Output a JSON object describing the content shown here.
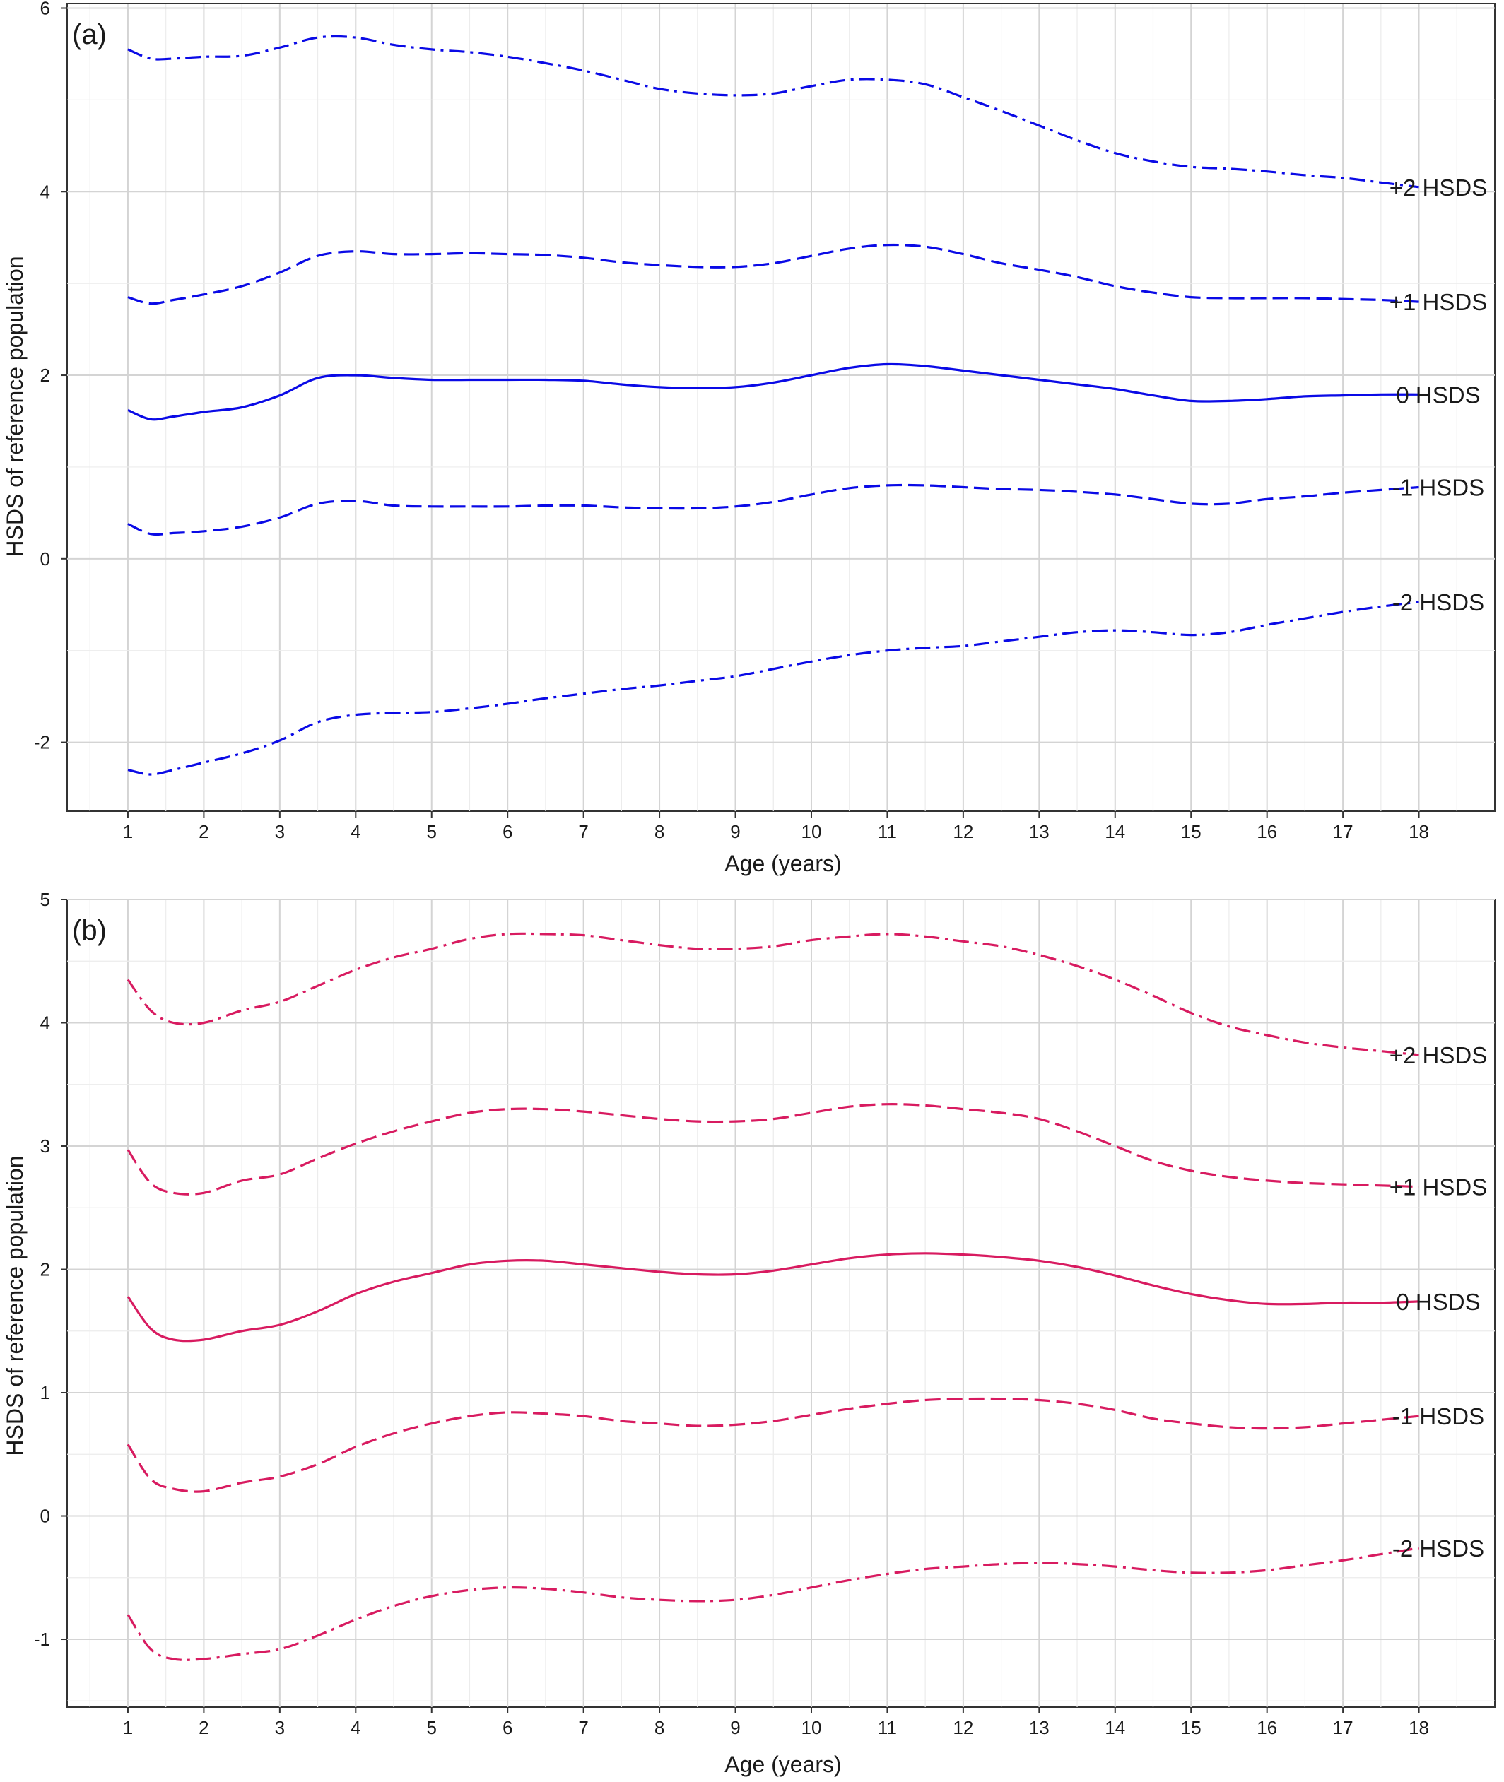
{
  "chart_data": [
    {
      "type": "line",
      "panel_label": "(a)",
      "xlabel": "Age (years)",
      "ylabel": "HSDS of reference population",
      "xlim": [
        0.2,
        19.0
      ],
      "ylim": [
        -2.75,
        6.05
      ],
      "x_ticks": [
        "1",
        "2",
        "3",
        "4",
        "5",
        "6",
        "7",
        "8",
        "9",
        "10",
        "11",
        "12",
        "13",
        "14",
        "15",
        "16",
        "17",
        "18"
      ],
      "y_ticks": [
        "-2",
        "0",
        "2",
        "4",
        "6"
      ],
      "grid": true,
      "color": "#0a0ae6",
      "series": [
        {
          "name": "+2 HSDS",
          "dash": "dotdash",
          "x": [
            1,
            1.3,
            1.6,
            2,
            2.5,
            3,
            3.5,
            4,
            4.5,
            5,
            5.5,
            6,
            6.5,
            7,
            7.5,
            8,
            8.5,
            9,
            9.5,
            10,
            10.5,
            11,
            11.5,
            12,
            12.5,
            13,
            13.5,
            14,
            14.5,
            15,
            15.5,
            16,
            16.5,
            17,
            17.5,
            18
          ],
          "y": [
            5.55,
            5.45,
            5.45,
            5.47,
            5.48,
            5.57,
            5.68,
            5.68,
            5.6,
            5.55,
            5.52,
            5.47,
            5.4,
            5.32,
            5.22,
            5.12,
            5.07,
            5.05,
            5.07,
            5.15,
            5.22,
            5.22,
            5.17,
            5.03,
            4.88,
            4.72,
            4.56,
            4.42,
            4.33,
            4.27,
            4.25,
            4.22,
            4.18,
            4.15,
            4.1,
            4.05
          ]
        },
        {
          "name": "+1 HSDS",
          "dash": "dash",
          "x": [
            1,
            1.3,
            1.6,
            2,
            2.5,
            3,
            3.5,
            4,
            4.5,
            5,
            5.5,
            6,
            6.5,
            7,
            7.5,
            8,
            8.5,
            9,
            9.5,
            10,
            10.5,
            11,
            11.5,
            12,
            12.5,
            13,
            13.5,
            14,
            14.5,
            15,
            15.5,
            16,
            16.5,
            17,
            17.5,
            18
          ],
          "y": [
            2.85,
            2.78,
            2.82,
            2.88,
            2.97,
            3.12,
            3.3,
            3.35,
            3.32,
            3.32,
            3.33,
            3.32,
            3.31,
            3.28,
            3.23,
            3.2,
            3.18,
            3.18,
            3.22,
            3.3,
            3.38,
            3.42,
            3.4,
            3.32,
            3.22,
            3.15,
            3.07,
            2.97,
            2.9,
            2.85,
            2.84,
            2.84,
            2.84,
            2.83,
            2.82,
            2.8
          ]
        },
        {
          "name": "0 HSDS",
          "dash": "solid",
          "x": [
            1,
            1.3,
            1.6,
            2,
            2.5,
            3,
            3.5,
            4,
            4.5,
            5,
            5.5,
            6,
            6.5,
            7,
            7.5,
            8,
            8.5,
            9,
            9.5,
            10,
            10.5,
            11,
            11.5,
            12,
            12.5,
            13,
            13.5,
            14,
            14.5,
            15,
            15.5,
            16,
            16.5,
            17,
            17.5,
            18
          ],
          "y": [
            1.62,
            1.52,
            1.55,
            1.6,
            1.65,
            1.78,
            1.97,
            2.0,
            1.97,
            1.95,
            1.95,
            1.95,
            1.95,
            1.94,
            1.9,
            1.87,
            1.86,
            1.87,
            1.92,
            2.0,
            2.08,
            2.12,
            2.1,
            2.05,
            2.0,
            1.95,
            1.9,
            1.85,
            1.78,
            1.72,
            1.72,
            1.74,
            1.77,
            1.78,
            1.79,
            1.79
          ]
        },
        {
          "name": "-1 HSDS",
          "dash": "dash",
          "x": [
            1,
            1.3,
            1.6,
            2,
            2.5,
            3,
            3.5,
            4,
            4.5,
            5,
            5.5,
            6,
            6.5,
            7,
            7.5,
            8,
            8.5,
            9,
            9.5,
            10,
            10.5,
            11,
            11.5,
            12,
            12.5,
            13,
            13.5,
            14,
            14.5,
            15,
            15.5,
            16,
            16.5,
            17,
            17.5,
            18
          ],
          "y": [
            0.38,
            0.27,
            0.28,
            0.3,
            0.35,
            0.45,
            0.6,
            0.63,
            0.58,
            0.57,
            0.57,
            0.57,
            0.58,
            0.58,
            0.56,
            0.55,
            0.55,
            0.57,
            0.62,
            0.7,
            0.77,
            0.8,
            0.8,
            0.78,
            0.76,
            0.75,
            0.73,
            0.7,
            0.65,
            0.6,
            0.6,
            0.65,
            0.68,
            0.72,
            0.75,
            0.78
          ]
        },
        {
          "name": "-2 HSDS",
          "dash": "dotdash",
          "x": [
            1,
            1.3,
            1.6,
            2,
            2.5,
            3,
            3.5,
            4,
            4.5,
            5,
            5.5,
            6,
            6.5,
            7,
            7.5,
            8,
            8.5,
            9,
            9.5,
            10,
            10.5,
            11,
            11.5,
            12,
            12.5,
            13,
            13.5,
            14,
            14.5,
            15,
            15.5,
            16,
            16.5,
            17,
            17.5,
            18
          ],
          "y": [
            -2.3,
            -2.35,
            -2.3,
            -2.22,
            -2.12,
            -1.98,
            -1.78,
            -1.7,
            -1.68,
            -1.67,
            -1.63,
            -1.58,
            -1.52,
            -1.47,
            -1.42,
            -1.38,
            -1.33,
            -1.28,
            -1.2,
            -1.12,
            -1.05,
            -1.0,
            -0.97,
            -0.95,
            -0.9,
            -0.85,
            -0.8,
            -0.78,
            -0.8,
            -0.83,
            -0.8,
            -0.72,
            -0.65,
            -0.58,
            -0.52,
            -0.47
          ]
        }
      ]
    },
    {
      "type": "line",
      "panel_label": "(b)",
      "xlabel": "Age (years)",
      "ylabel": "HSDS of reference population",
      "xlim": [
        0.2,
        19.0
      ],
      "ylim": [
        -1.55,
        5.0
      ],
      "x_ticks": [
        "1",
        "2",
        "3",
        "4",
        "5",
        "6",
        "7",
        "8",
        "9",
        "10",
        "11",
        "12",
        "13",
        "14",
        "15",
        "16",
        "17",
        "18"
      ],
      "y_ticks": [
        "-1",
        "0",
        "1",
        "2",
        "3",
        "4",
        "5"
      ],
      "grid": true,
      "color": "#d81b60",
      "series": [
        {
          "name": "+2 HSDS",
          "dash": "dotdash",
          "x": [
            1,
            1.3,
            1.6,
            2,
            2.5,
            3,
            3.5,
            4,
            4.5,
            5,
            5.5,
            6,
            6.5,
            7,
            7.5,
            8,
            8.5,
            9,
            9.5,
            10,
            10.5,
            11,
            11.5,
            12,
            12.5,
            13,
            13.5,
            14,
            14.5,
            15,
            15.5,
            16,
            16.5,
            17,
            17.5,
            18
          ],
          "y": [
            4.35,
            4.1,
            4.0,
            4.0,
            4.1,
            4.17,
            4.3,
            4.43,
            4.53,
            4.6,
            4.68,
            4.72,
            4.72,
            4.71,
            4.67,
            4.63,
            4.6,
            4.6,
            4.62,
            4.67,
            4.7,
            4.72,
            4.7,
            4.66,
            4.62,
            4.55,
            4.46,
            4.35,
            4.22,
            4.08,
            3.97,
            3.9,
            3.84,
            3.8,
            3.77,
            3.74
          ]
        },
        {
          "name": "+1 HSDS",
          "dash": "dash",
          "x": [
            1,
            1.3,
            1.6,
            2,
            2.5,
            3,
            3.5,
            4,
            4.5,
            5,
            5.5,
            6,
            6.5,
            7,
            7.5,
            8,
            8.5,
            9,
            9.5,
            10,
            10.5,
            11,
            11.5,
            12,
            12.5,
            13,
            13.5,
            14,
            14.5,
            15,
            15.5,
            16,
            16.5,
            17,
            17.5,
            18
          ],
          "y": [
            2.97,
            2.7,
            2.62,
            2.62,
            2.72,
            2.77,
            2.9,
            3.02,
            3.12,
            3.2,
            3.27,
            3.3,
            3.3,
            3.28,
            3.25,
            3.22,
            3.2,
            3.2,
            3.22,
            3.27,
            3.32,
            3.34,
            3.33,
            3.3,
            3.27,
            3.22,
            3.12,
            3.0,
            2.88,
            2.8,
            2.75,
            2.72,
            2.7,
            2.69,
            2.68,
            2.67
          ]
        },
        {
          "name": "0 HSDS",
          "dash": "solid",
          "x": [
            1,
            1.3,
            1.6,
            2,
            2.5,
            3,
            3.5,
            4,
            4.5,
            5,
            5.5,
            6,
            6.5,
            7,
            7.5,
            8,
            8.5,
            9,
            9.5,
            10,
            10.5,
            11,
            11.5,
            12,
            12.5,
            13,
            13.5,
            14,
            14.5,
            15,
            15.5,
            16,
            16.5,
            17,
            17.5,
            18
          ],
          "y": [
            1.78,
            1.52,
            1.43,
            1.43,
            1.5,
            1.55,
            1.66,
            1.8,
            1.9,
            1.97,
            2.04,
            2.07,
            2.07,
            2.04,
            2.01,
            1.98,
            1.96,
            1.96,
            1.99,
            2.04,
            2.09,
            2.12,
            2.13,
            2.12,
            2.1,
            2.07,
            2.02,
            1.95,
            1.87,
            1.8,
            1.75,
            1.72,
            1.72,
            1.73,
            1.73,
            1.74
          ]
        },
        {
          "name": "-1 HSDS",
          "dash": "dash",
          "x": [
            1,
            1.3,
            1.6,
            2,
            2.5,
            3,
            3.5,
            4,
            4.5,
            5,
            5.5,
            6,
            6.5,
            7,
            7.5,
            8,
            8.5,
            9,
            9.5,
            10,
            10.5,
            11,
            11.5,
            12,
            12.5,
            13,
            13.5,
            14,
            14.5,
            15,
            15.5,
            16,
            16.5,
            17,
            17.5,
            18
          ],
          "y": [
            0.58,
            0.3,
            0.22,
            0.2,
            0.27,
            0.32,
            0.42,
            0.56,
            0.67,
            0.75,
            0.81,
            0.84,
            0.83,
            0.81,
            0.77,
            0.75,
            0.73,
            0.74,
            0.77,
            0.82,
            0.87,
            0.91,
            0.94,
            0.95,
            0.95,
            0.94,
            0.91,
            0.86,
            0.79,
            0.75,
            0.72,
            0.71,
            0.72,
            0.75,
            0.78,
            0.81
          ]
        },
        {
          "name": "-2 HSDS",
          "dash": "dotdash",
          "x": [
            1,
            1.3,
            1.6,
            2,
            2.5,
            3,
            3.5,
            4,
            4.5,
            5,
            5.5,
            6,
            6.5,
            7,
            7.5,
            8,
            8.5,
            9,
            9.5,
            10,
            10.5,
            11,
            11.5,
            12,
            12.5,
            13,
            13.5,
            14,
            14.5,
            15,
            15.5,
            16,
            16.5,
            17,
            17.5,
            18
          ],
          "y": [
            -0.8,
            -1.08,
            -1.16,
            -1.16,
            -1.12,
            -1.08,
            -0.97,
            -0.84,
            -0.73,
            -0.65,
            -0.6,
            -0.58,
            -0.59,
            -0.62,
            -0.66,
            -0.68,
            -0.69,
            -0.68,
            -0.64,
            -0.58,
            -0.52,
            -0.47,
            -0.43,
            -0.41,
            -0.39,
            -0.38,
            -0.39,
            -0.41,
            -0.44,
            -0.46,
            -0.46,
            -0.44,
            -0.4,
            -0.36,
            -0.31,
            -0.26
          ]
        }
      ]
    }
  ]
}
